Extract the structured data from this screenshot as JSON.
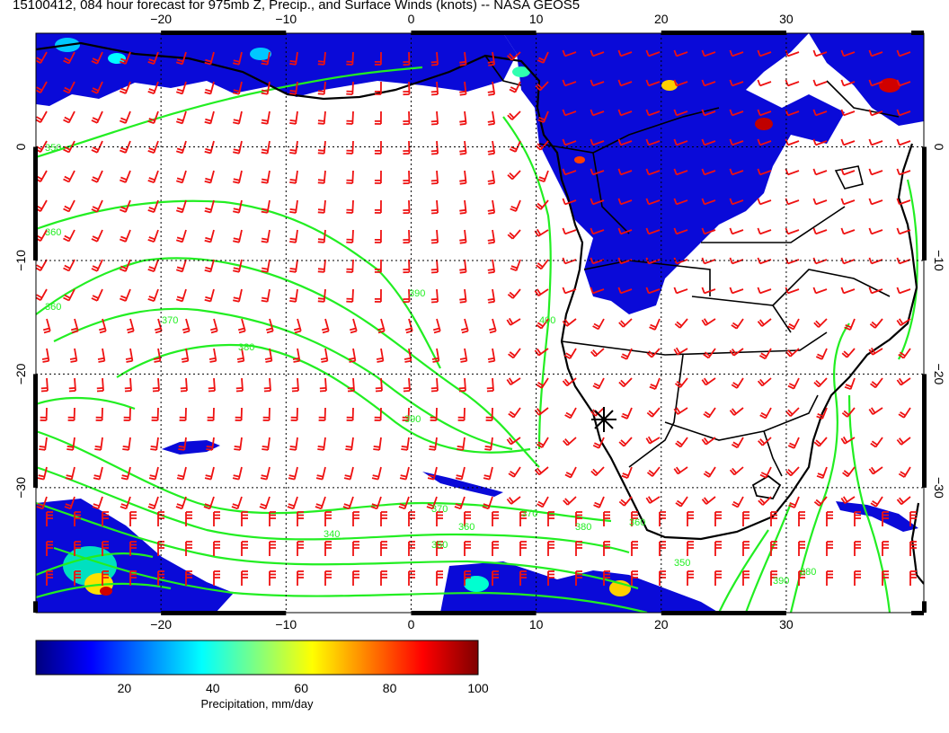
{
  "title": "15100412, 084 hour forecast for 975mb Z, Precip., and Surface Winds (knots) -- NASA GEOS5",
  "map": {
    "lon_range": [
      -30,
      41
    ],
    "lat_range": [
      -41,
      10
    ],
    "lon_ticks": [
      -20,
      -10,
      0,
      10,
      20,
      30
    ],
    "lon_tick_labels": [
      "−20",
      "−10",
      "0",
      "10",
      "20",
      "30"
    ],
    "lat_ticks": [
      0,
      -10,
      -20,
      -30
    ],
    "lat_tick_labels": [
      "0",
      "−10",
      "−20",
      "−30"
    ],
    "grid": "dotted every 10 degrees",
    "marker": {
      "name": "asterisk",
      "lon": 15,
      "lat": -23
    },
    "contour_color": "#22ee22",
    "barb_color": "#ee1111",
    "coast_color": "#000000",
    "contour_labels": [
      "350",
      "360",
      "360",
      "370",
      "380",
      "390",
      "400",
      "390",
      "370",
      "360",
      "350",
      "340",
      "370",
      "380",
      "360",
      "350",
      "390",
      "380"
    ]
  },
  "colorbar": {
    "title": "Precipitation, mm/day",
    "range": [
      0,
      100
    ],
    "ticks": [
      20,
      40,
      60,
      80,
      100
    ],
    "tick_labels": [
      "20",
      "40",
      "60",
      "80",
      "100"
    ],
    "colors": [
      "#00007f",
      "#0000ff",
      "#0080ff",
      "#00ffff",
      "#80ff80",
      "#ffff00",
      "#ff8000",
      "#ff0000",
      "#7f0000"
    ]
  }
}
